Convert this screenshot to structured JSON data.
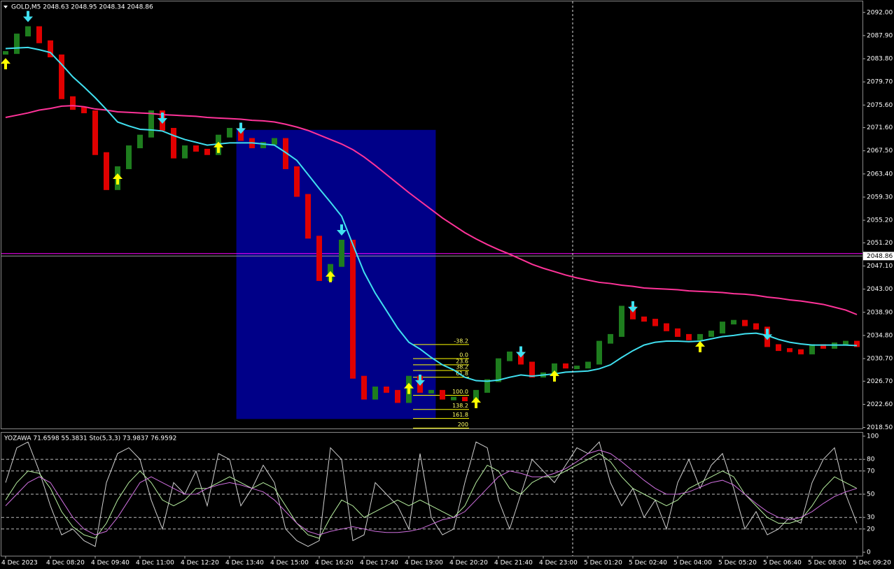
{
  "chart_data": [
    {
      "type": "ohlc",
      "header": "GOLD,M5  2048.63 2048.95 2048.34 2048.86",
      "categories": [
        "4 Dec 2023",
        null,
        null,
        null,
        "4 Dec 08:20",
        null,
        null,
        null,
        "4 Dec 09:40",
        null,
        null,
        null,
        "4 Dec 11:00",
        null,
        null,
        null,
        "4 Dec 12:20",
        null,
        null,
        null,
        "4 Dec 13:40",
        null,
        null,
        null,
        "4 Dec 15:00",
        null,
        null,
        null,
        "4 Dec 16:20",
        null,
        null,
        null,
        "4 Dec 17:40",
        null,
        null,
        null,
        "4 Dec 19:00",
        null,
        null,
        null,
        "4 Dec 20:20",
        null,
        null,
        null,
        "4 Dec 21:40",
        null,
        null,
        null,
        "4 Dec 23:00",
        null,
        null,
        null,
        "5 Dec 01:20",
        null,
        null,
        null,
        "5 Dec 02:40",
        null,
        null,
        null,
        "5 Dec 04:00",
        null,
        null,
        null,
        "5 Dec 05:20",
        null,
        null,
        null,
        "5 Dec 06:40",
        null,
        null,
        null,
        "5 Dec 08:00",
        null,
        null,
        null,
        "5 Dec 09:20"
      ],
      "up_color": "#1e7d1e",
      "down_color": "#e00000",
      "values": [
        2084.9,
        2088.0,
        2089.3,
        2086.8,
        2084.3,
        2076.9,
        2075.0,
        2074.4,
        2067.0,
        2060.8,
        2064.5,
        2068.2,
        2070.1,
        2074.4,
        2071.3,
        2066.4,
        2068.2,
        2067.6,
        2067.0,
        2070.1,
        2071.3,
        2069.5,
        2068.2,
        2068.8,
        2069.5,
        2064.5,
        2059.6,
        2052.2,
        2044.7,
        2047.2,
        2051.5,
        2027.4,
        2023.7,
        2025.5,
        2024.9,
        2023.1,
        2027.4,
        2024.9,
        2024.9,
        2023.7,
        2023.7,
        2023.4,
        2024.9,
        2026.8,
        2030.5,
        2031.7,
        2029.9,
        2027.6,
        2028.0,
        2029.6,
        2029.2,
        2029.2,
        2029.9,
        2033.6,
        2034.8,
        2039.8,
        2037.9,
        2037.5,
        2036.7,
        2035.8,
        2034.8,
        2034.2,
        2034.8,
        2035.4,
        2037.0,
        2037.3,
        2036.7,
        2036.1,
        2033.0,
        2032.3,
        2032.1,
        2031.7,
        2033.0,
        2032.7,
        2033.3,
        2033.6,
        2033.0
      ],
      "lines": [
        {
          "color": "#ff3399",
          "values": [
            2073.4,
            2073.8,
            2074.2,
            2074.7,
            2075.0,
            2075.4,
            2075.5,
            2075.3,
            2074.9,
            2074.7,
            2074.4,
            2074.3,
            2074.2,
            2074.1,
            2073.9,
            2073.8,
            2073.7,
            2073.6,
            2073.4,
            2073.3,
            2073.2,
            2073.1,
            2072.9,
            2072.8,
            2072.6,
            2072.2,
            2071.7,
            2071.1,
            2070.3,
            2069.5,
            2068.7,
            2067.7,
            2066.4,
            2064.9,
            2063.3,
            2061.7,
            2060.1,
            2058.6,
            2057.1,
            2055.6,
            2054.3,
            2053.0,
            2051.9,
            2050.9,
            2050.0,
            2049.2,
            2048.3,
            2047.4,
            2046.7,
            2046.1,
            2045.5,
            2045.0,
            2044.6,
            2044.2,
            2044.0,
            2043.7,
            2043.5,
            2043.2,
            2043.1,
            2043.0,
            2042.9,
            2042.7,
            2042.6,
            2042.5,
            2042.4,
            2042.2,
            2042.1,
            2041.9,
            2041.6,
            2041.4,
            2041.1,
            2040.9,
            2040.6,
            2040.3,
            2039.8,
            2039.3,
            2038.5
          ]
        },
        {
          "color": "#40e0f0",
          "values": [
            2085.6,
            2085.7,
            2085.8,
            2085.4,
            2084.9,
            2082.8,
            2080.6,
            2078.8,
            2076.9,
            2074.8,
            2072.6,
            2071.9,
            2071.3,
            2071.2,
            2071.0,
            2070.2,
            2069.5,
            2069.0,
            2068.5,
            2068.7,
            2068.9,
            2068.9,
            2068.9,
            2068.7,
            2068.5,
            2067.2,
            2065.8,
            2063.3,
            2060.8,
            2058.4,
            2055.9,
            2050.9,
            2046.0,
            2042.3,
            2039.2,
            2036.1,
            2033.6,
            2032.4,
            2030.9,
            2029.6,
            2028.7,
            2027.4,
            2026.8,
            2026.7,
            2026.9,
            2027.4,
            2027.8,
            2027.6,
            2027.8,
            2028.0,
            2028.3,
            2028.4,
            2028.5,
            2028.9,
            2029.6,
            2030.9,
            2032.1,
            2033.1,
            2033.6,
            2033.8,
            2033.8,
            2033.7,
            2033.8,
            2034.2,
            2034.6,
            2034.8,
            2035.1,
            2035.2,
            2034.8,
            2034.1,
            2033.6,
            2033.3,
            2033.1,
            2033.1,
            2033.1,
            2033.1,
            2033.0
          ]
        }
      ],
      "signals_up": [
        0,
        10,
        19,
        29,
        36,
        42,
        49,
        62
      ],
      "signals_down": [
        2,
        14,
        21,
        30,
        37,
        46,
        56,
        68
      ],
      "zone": {
        "start": 20.6,
        "end": 38.4,
        "top": 2071.2,
        "bottom": 2020.0,
        "color": "#000088"
      },
      "fib_levels": [
        {
          "label": "-38.2",
          "price": 2033.2
        },
        {
          "label": "0.0",
          "price": 2030.7
        },
        {
          "label": "23.6",
          "price": 2029.6
        },
        {
          "label": "38.2",
          "price": 2028.6
        },
        {
          "label": "61.8",
          "price": 2027.4
        },
        {
          "label": "100.0",
          "price": 2024.2
        },
        {
          "label": "138.2",
          "price": 2021.7
        },
        {
          "label": "161.8",
          "price": 2020.1
        },
        {
          "label": "200",
          "price": 2018.4
        }
      ],
      "hline": {
        "value": 2049.3,
        "color": "#ff00ff"
      },
      "last_price": 2048.86,
      "ylim": [
        2018.2,
        2094.2
      ],
      "yticks": [
        {
          "value": 2092.0,
          "label": "2092.00"
        },
        {
          "value": 2087.9,
          "label": "2087.90"
        },
        {
          "value": 2083.8,
          "label": "2083.80"
        },
        {
          "value": 2079.7,
          "label": "2079.70"
        },
        {
          "value": 2075.6,
          "label": "2075.60"
        },
        {
          "value": 2071.6,
          "label": "2071.60"
        },
        {
          "value": 2067.5,
          "label": "2067.50"
        },
        {
          "value": 2063.4,
          "label": "2063.40"
        },
        {
          "value": 2059.3,
          "label": "2059.30"
        },
        {
          "value": 2055.2,
          "label": "2055.20"
        },
        {
          "value": 2051.2,
          "label": "2051.20"
        },
        {
          "value": 2047.1,
          "label": "2047.10"
        },
        {
          "value": 2043.0,
          "label": "2043.00"
        },
        {
          "value": 2038.9,
          "label": "2038.90"
        },
        {
          "value": 2034.8,
          "label": "2034.80"
        },
        {
          "value": 2030.7,
          "label": "2030.70"
        },
        {
          "value": 2026.7,
          "label": "2026.70"
        },
        {
          "value": 2022.6,
          "label": "2022.60"
        },
        {
          "value": 2018.5,
          "label": "2018.50"
        }
      ]
    },
    {
      "type": "line",
      "header": "YOZAWA 71.6598 55.3831  Sto(5,3,3) 73.9837 76.9592",
      "series": [
        {
          "color": "#cfcfcf",
          "values": [
            60,
            90,
            95,
            70,
            40,
            15,
            20,
            10,
            5,
            60,
            85,
            90,
            80,
            45,
            20,
            60,
            50,
            70,
            40,
            85,
            80,
            40,
            55,
            75,
            60,
            20,
            10,
            5,
            10,
            90,
            80,
            10,
            15,
            60,
            50,
            40,
            20,
            85,
            30,
            15,
            20,
            60,
            95,
            90,
            45,
            20,
            50,
            80,
            70,
            60,
            75,
            90,
            85,
            95,
            60,
            40,
            55,
            30,
            45,
            20,
            60,
            80,
            55,
            75,
            85,
            55,
            20,
            35,
            15,
            20,
            30,
            25,
            60,
            80,
            90,
            50,
            25
          ]
        },
        {
          "color": "#b8f0a0",
          "values": [
            45,
            60,
            70,
            68,
            55,
            35,
            22,
            15,
            12,
            25,
            45,
            60,
            70,
            60,
            45,
            40,
            45,
            55,
            55,
            60,
            65,
            60,
            55,
            60,
            55,
            40,
            25,
            15,
            12,
            30,
            45,
            40,
            30,
            35,
            40,
            45,
            40,
            45,
            40,
            35,
            30,
            40,
            60,
            75,
            70,
            55,
            50,
            60,
            65,
            65,
            70,
            75,
            80,
            85,
            78,
            65,
            55,
            50,
            45,
            40,
            45,
            55,
            60,
            65,
            70,
            65,
            50,
            40,
            30,
            25,
            25,
            28,
            40,
            55,
            65,
            60,
            55
          ]
        },
        {
          "color": "#d070e0",
          "values": [
            40,
            50,
            60,
            65,
            60,
            45,
            30,
            20,
            15,
            18,
            30,
            45,
            60,
            65,
            60,
            55,
            50,
            50,
            55,
            58,
            60,
            58,
            55,
            52,
            45,
            35,
            25,
            18,
            15,
            18,
            20,
            22,
            20,
            18,
            17,
            17,
            18,
            20,
            24,
            28,
            30,
            35,
            45,
            55,
            65,
            70,
            68,
            65,
            65,
            68,
            72,
            78,
            85,
            88,
            85,
            78,
            70,
            62,
            55,
            50,
            50,
            52,
            56,
            60,
            62,
            58,
            50,
            42,
            35,
            30,
            28,
            30,
            35,
            42,
            48,
            52,
            55
          ]
        }
      ],
      "ylim": [
        -3,
        103.6
      ],
      "yticks": [
        100,
        80,
        70,
        50,
        30,
        20,
        0
      ]
    }
  ]
}
